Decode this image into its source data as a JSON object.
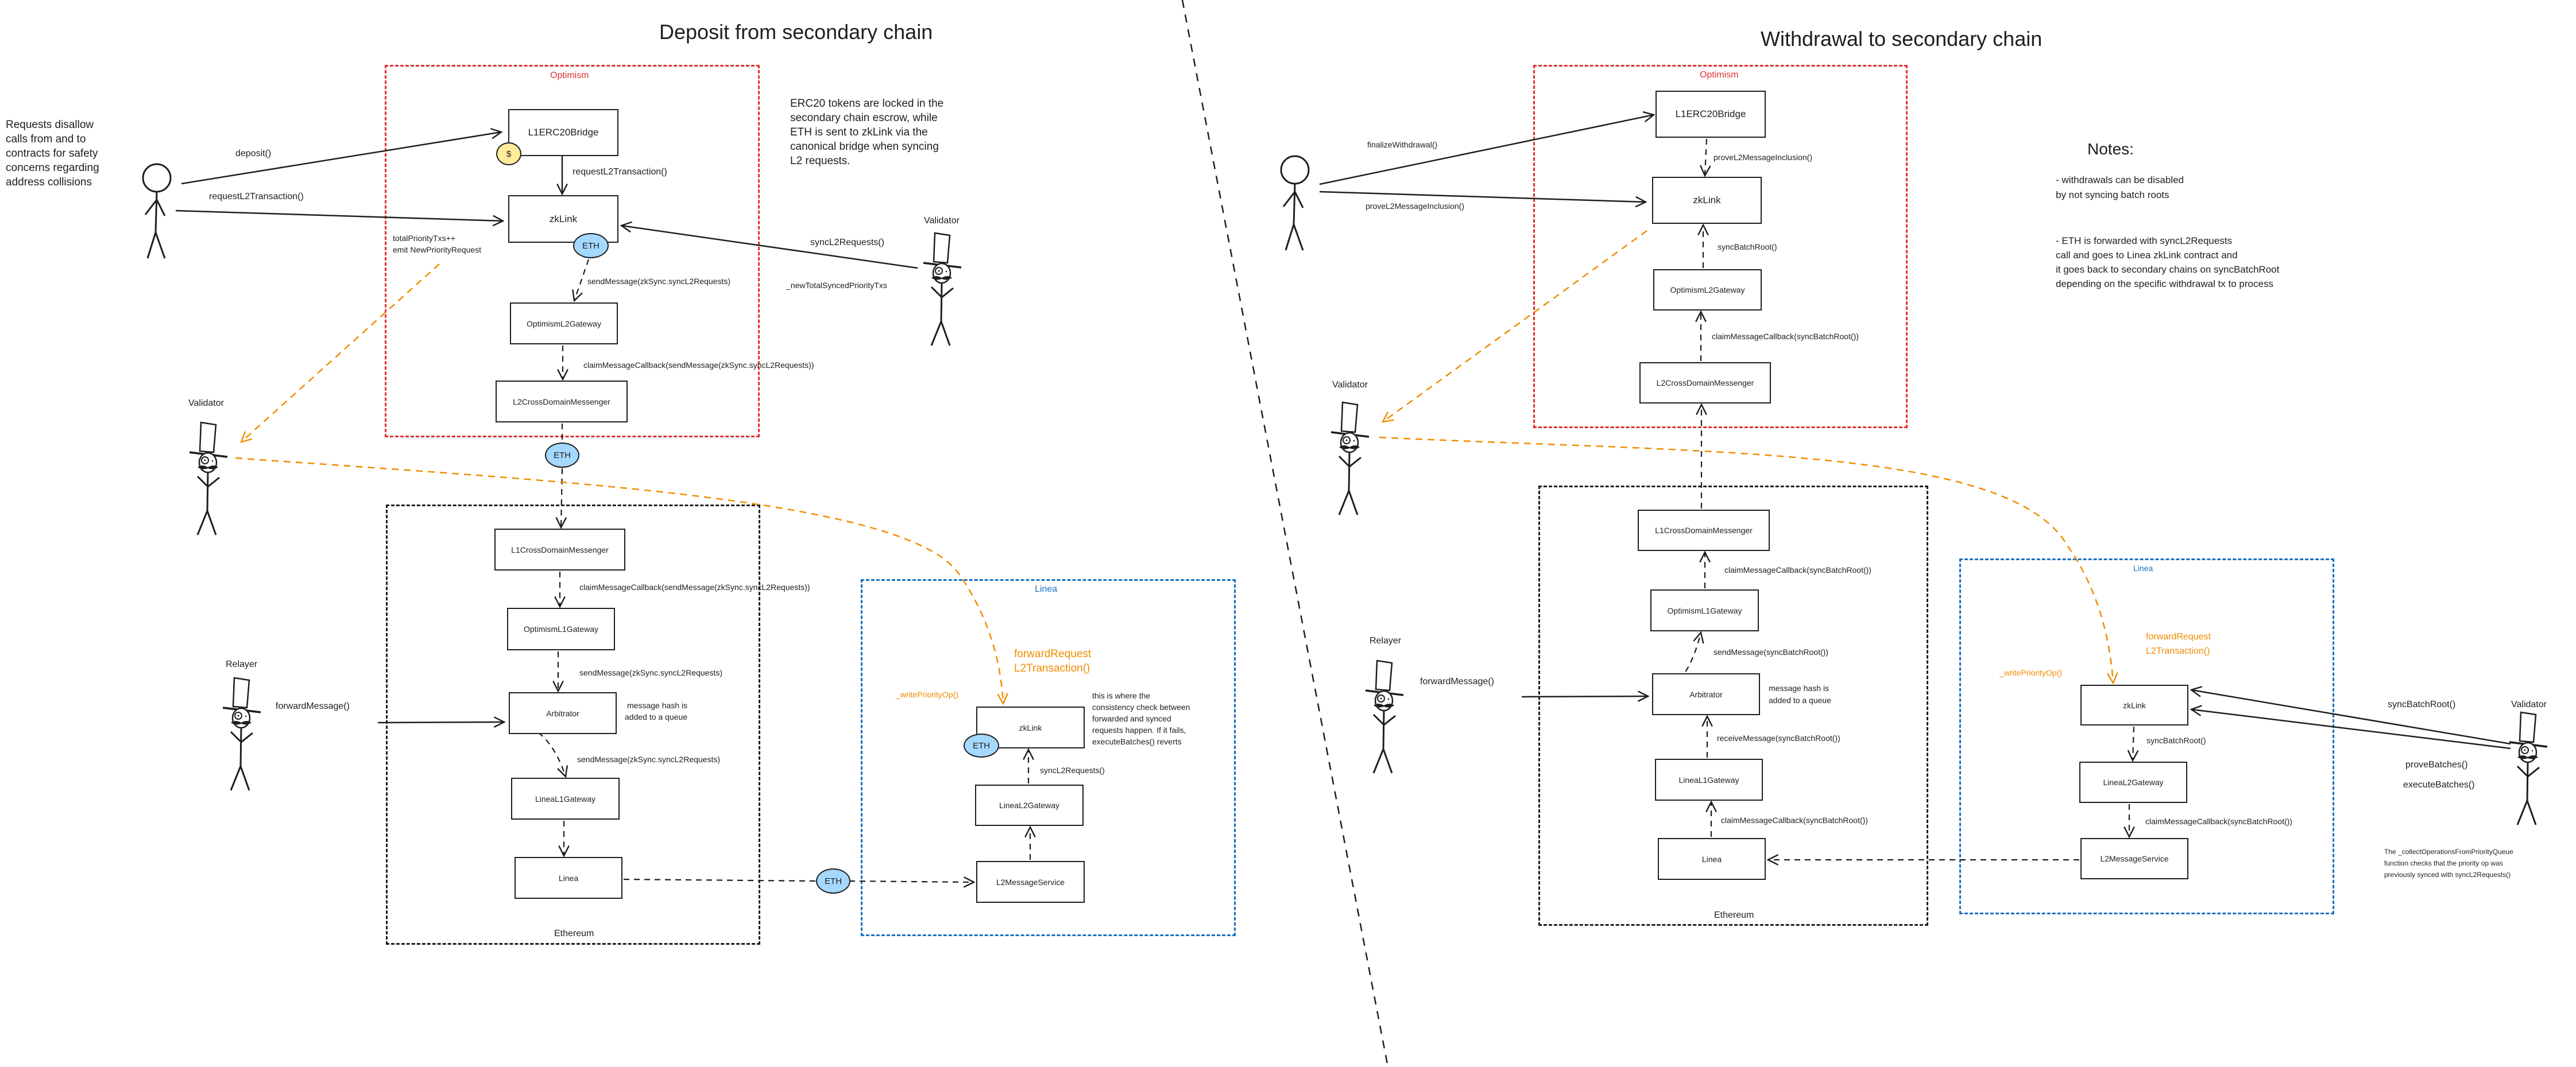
{
  "colors": {
    "optimism": "#e03131",
    "ethereum": "#1e1e1e",
    "linea": "#1971c2",
    "highlight": "#f08c00",
    "eth_token": "#a5d8ff",
    "erc20_token": "#ffec99"
  },
  "deposit": {
    "title": "Deposit from secondary chain",
    "user_note": [
      "Requests disallow",
      "calls from and to",
      "contracts for safety",
      "concerns regarding",
      "address collisions"
    ],
    "erc20_note": [
      "ERC20 tokens are locked in the",
      "secondary chain escrow, while",
      "ETH is sent to zkLink via the",
      "canonical bridge when syncing",
      "L2 requests."
    ],
    "optimism": {
      "label": "Optimism",
      "boxes": {
        "bridge": "L1ERC20Bridge",
        "zklink": "zkLink",
        "gateway": "OptimismL2Gateway",
        "messenger": "L2CrossDomainMessenger"
      },
      "coin_usd": "$",
      "coin_eth": "ETH",
      "edges": {
        "deposit": "deposit()",
        "request_user": "requestL2Transaction()",
        "request_bridge": "requestL2Transaction()",
        "priority": [
          "totalPriorityTxs++",
          "emit NewPriorityRequest"
        ],
        "send": "sendMessage(zkSync.syncL2Requests)",
        "claim": "claimMessageCallback(sendMessage(zkSync.syncL2Requests))",
        "sync": "syncL2Requests()",
        "synced": "_newTotalSyncedPriorityTxs"
      }
    },
    "bridge_eth": "ETH",
    "ethereum": {
      "label": "Ethereum",
      "boxes": {
        "messenger": "L1CrossDomainMessenger",
        "gateway": "OptimismL1Gateway",
        "arbitrator": "Arbitrator",
        "linea_gateway": "LineaL1Gateway",
        "linea": "Linea"
      },
      "edges": {
        "claim": "claimMessageCallback(sendMessage(zkSync.syncL2Requests))",
        "send1": "sendMessage(zkSync.syncL2Requests)",
        "send2": "sendMessage(zkSync.syncL2Requests)",
        "forward": "forwardMessage()"
      },
      "arbitrator_note": [
        "message hash is",
        "added to a queue"
      ]
    },
    "linea_eth": "ETH",
    "linea": {
      "label": "Linea",
      "boxes": {
        "zklink": "zkLink",
        "gateway": "LineaL2Gateway",
        "service": "L2MessageService"
      },
      "coin_eth": "ETH",
      "forward_request": [
        "forwardRequest",
        "L2Transaction()"
      ],
      "write_priority": "_writePriorityOp()",
      "sync": "syncL2Requests()",
      "note": [
        "this is where the",
        "consistency check between",
        "forwarded and synced",
        "requests happen. If it fails,",
        "executeBatches() reverts"
      ]
    },
    "actors": {
      "validator_left": "Validator",
      "validator_right": "Validator",
      "relayer": "Relayer"
    }
  },
  "withdrawal": {
    "title": "Withdrawal to secondary chain",
    "optimism": {
      "label": "Optimism",
      "boxes": {
        "bridge": "L1ERC20Bridge",
        "zklink": "zkLink",
        "gateway": "OptimismL2Gateway",
        "messenger": "L2CrossDomainMessenger"
      },
      "edges": {
        "finalize": "finalizeWithdrawal()",
        "prove_user": "proveL2MessageInclusion()",
        "prove_bridge": "proveL2MessageInclusion()",
        "sync": "syncBatchRoot()",
        "claim": "claimMessageCallback(syncBatchRoot())"
      }
    },
    "ethereum": {
      "label": "Ethereum",
      "boxes": {
        "messenger": "L1CrossDomainMessenger",
        "gateway": "OptimismL1Gateway",
        "arbitrator": "Arbitrator",
        "linea_gateway": "LineaL1Gateway",
        "linea": "Linea"
      },
      "edges": {
        "claim1": "claimMessageCallback(syncBatchRoot())",
        "send": "sendMessage(syncBatchRoot())",
        "receive": "receiveMessage(syncBatchRoot())",
        "claim2": "claimMessageCallback(syncBatchRoot())",
        "forward": "forwardMessage()"
      },
      "arbitrator_note": [
        "message hash is",
        "added to a queue"
      ]
    },
    "linea": {
      "label": "Linea",
      "boxes": {
        "zklink": "zkLink",
        "gateway": "LineaL2Gateway",
        "service": "L2MessageService"
      },
      "forward_request": [
        "forwardRequest",
        "L2Transaction()"
      ],
      "write_priority": "_writePriorityOp()",
      "sync": "syncBatchRoot()",
      "claim": "claimMessageCallback(syncBatchRoot())"
    },
    "validator_calls": {
      "sync": "syncBatchRoot()",
      "prove": "proveBatches()",
      "execute": "executeBatches()"
    },
    "validator_note": [
      "The _collectOperationsFromPriorityQueue",
      "function checks that the priority op was",
      "previously synced with syncL2Requests()"
    ],
    "actors": {
      "validator_left": "Validator",
      "validator_right": "Validator",
      "relayer": "Relayer"
    },
    "notes": {
      "title": "Notes:",
      "item1": [
        "- withdrawals can be disabled",
        "by not syncing batch roots"
      ],
      "item2": [
        "- ETH is forwarded with syncL2Requests",
        "call and goes to Linea zkLink contract and",
        "it goes back to secondary chains on syncBatchRoot",
        "depending on the specific withdrawal tx to process"
      ]
    }
  }
}
